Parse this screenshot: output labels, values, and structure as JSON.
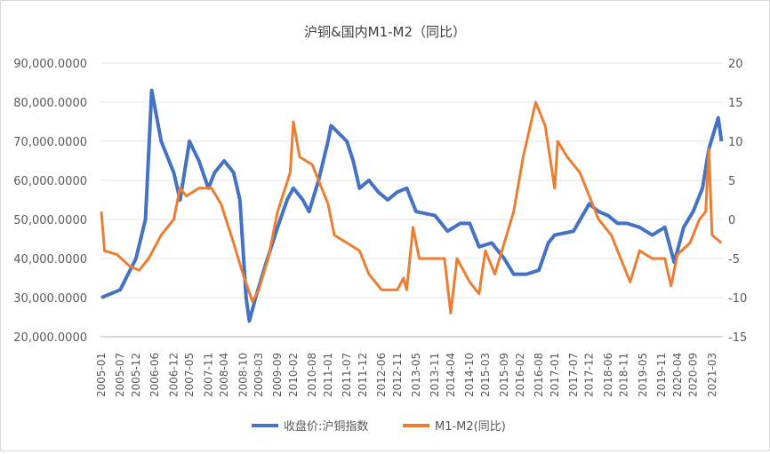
{
  "chart_data": {
    "type": "line",
    "title": "沪铜&国内M1-M2（同比）",
    "y_left": {
      "min": 20000,
      "max": 90000,
      "step": 10000,
      "ticks": [
        "20,000.0000",
        "30,000.0000",
        "40,000.0000",
        "50,000.0000",
        "60,000.0000",
        "70,000.0000",
        "80,000.0000",
        "90,000.0000"
      ]
    },
    "y_right": {
      "min": -15,
      "max": 20,
      "step": 5,
      "ticks": [
        "-15",
        "-10",
        "-5",
        "0",
        "5",
        "10",
        "15",
        "20"
      ]
    },
    "x_ticks": [
      "2005-01",
      "2005-07",
      "2005-12",
      "2006-06",
      "2006-12",
      "2007-05",
      "2007-11",
      "2008-04",
      "2008-10",
      "2009-03",
      "2009-09",
      "2010-02",
      "2010-08",
      "2011-01",
      "2011-07",
      "2011-12",
      "2012-06",
      "2012-11",
      "2013-05",
      "2013-11",
      "2014-04",
      "2014-10",
      "2015-03",
      "2015-09",
      "2016-02",
      "2016-08",
      "2017-01",
      "2017-07",
      "2017-12",
      "2018-06",
      "2018-11",
      "2019-05",
      "2019-11",
      "2020-04",
      "2020-09",
      "2021-03"
    ],
    "grid": true,
    "legend": "bottom",
    "series": [
      {
        "name": "收盘价:沪铜指数",
        "axis": "left",
        "color": "#4472C4",
        "points": [
          [
            "2005-01",
            30000
          ],
          [
            "2005-07",
            32000
          ],
          [
            "2005-12",
            40000
          ],
          [
            "2006-03",
            50000
          ],
          [
            "2006-05",
            83000
          ],
          [
            "2006-08",
            70000
          ],
          [
            "2006-12",
            62000
          ],
          [
            "2007-02",
            55000
          ],
          [
            "2007-05",
            70000
          ],
          [
            "2007-08",
            65000
          ],
          [
            "2007-11",
            58000
          ],
          [
            "2008-01",
            62000
          ],
          [
            "2008-04",
            65000
          ],
          [
            "2008-07",
            62000
          ],
          [
            "2008-09",
            55000
          ],
          [
            "2008-11",
            30000
          ],
          [
            "2008-12",
            24000
          ],
          [
            "2009-02",
            30000
          ],
          [
            "2009-05",
            38000
          ],
          [
            "2009-09",
            48000
          ],
          [
            "2009-12",
            55000
          ],
          [
            "2010-02",
            58000
          ],
          [
            "2010-05",
            55000
          ],
          [
            "2010-07",
            52000
          ],
          [
            "2010-10",
            60000
          ],
          [
            "2011-01",
            70000
          ],
          [
            "2011-02",
            74000
          ],
          [
            "2011-07",
            70000
          ],
          [
            "2011-09",
            65000
          ],
          [
            "2011-11",
            58000
          ],
          [
            "2012-02",
            60000
          ],
          [
            "2012-05",
            57000
          ],
          [
            "2012-08",
            55000
          ],
          [
            "2012-11",
            57000
          ],
          [
            "2013-02",
            58000
          ],
          [
            "2013-05",
            52000
          ],
          [
            "2013-11",
            51000
          ],
          [
            "2014-03",
            47000
          ],
          [
            "2014-07",
            49000
          ],
          [
            "2014-10",
            49000
          ],
          [
            "2015-01",
            43000
          ],
          [
            "2015-05",
            44000
          ],
          [
            "2015-09",
            40000
          ],
          [
            "2015-12",
            36000
          ],
          [
            "2016-04",
            36000
          ],
          [
            "2016-08",
            37000
          ],
          [
            "2016-11",
            44000
          ],
          [
            "2017-01",
            46000
          ],
          [
            "2017-07",
            47000
          ],
          [
            "2017-12",
            54000
          ],
          [
            "2018-03",
            52000
          ],
          [
            "2018-06",
            51000
          ],
          [
            "2018-09",
            49000
          ],
          [
            "2018-12",
            49000
          ],
          [
            "2019-04",
            48000
          ],
          [
            "2019-08",
            46000
          ],
          [
            "2019-12",
            48000
          ],
          [
            "2020-03",
            39000
          ],
          [
            "2020-06",
            48000
          ],
          [
            "2020-09",
            52000
          ],
          [
            "2020-12",
            58000
          ],
          [
            "2021-02",
            68000
          ],
          [
            "2021-05",
            76000
          ],
          [
            "2021-06",
            70000
          ]
        ]
      },
      {
        "name": "M1-M2(同比)",
        "axis": "right",
        "color": "#ED7D31",
        "points": [
          [
            "2005-01",
            1
          ],
          [
            "2005-02",
            -4
          ],
          [
            "2005-06",
            -4.5
          ],
          [
            "2005-10",
            -6
          ],
          [
            "2006-01",
            -6.5
          ],
          [
            "2006-04",
            -5
          ],
          [
            "2006-08",
            -2
          ],
          [
            "2006-12",
            0
          ],
          [
            "2007-02",
            4
          ],
          [
            "2007-04",
            3
          ],
          [
            "2007-08",
            4
          ],
          [
            "2007-12",
            4
          ],
          [
            "2008-03",
            2
          ],
          [
            "2008-07",
            -3
          ],
          [
            "2008-10",
            -7
          ],
          [
            "2009-01",
            -10.5
          ],
          [
            "2009-03",
            -9
          ],
          [
            "2009-06",
            -5
          ],
          [
            "2009-09",
            1
          ],
          [
            "2010-01",
            6
          ],
          [
            "2010-02",
            12.5
          ],
          [
            "2010-04",
            8
          ],
          [
            "2010-08",
            7
          ],
          [
            "2010-10",
            5
          ],
          [
            "2011-01",
            2
          ],
          [
            "2011-03",
            -2
          ],
          [
            "2011-07",
            -3
          ],
          [
            "2011-11",
            -4
          ],
          [
            "2012-02",
            -7
          ],
          [
            "2012-06",
            -9
          ],
          [
            "2012-11",
            -9
          ],
          [
            "2013-01",
            -7.5
          ],
          [
            "2013-02",
            -9
          ],
          [
            "2013-04",
            -1
          ],
          [
            "2013-06",
            -5
          ],
          [
            "2013-11",
            -5
          ],
          [
            "2014-02",
            -5
          ],
          [
            "2014-04",
            -12
          ],
          [
            "2014-06",
            -5
          ],
          [
            "2014-10",
            -8
          ],
          [
            "2015-01",
            -9.5
          ],
          [
            "2015-03",
            -4
          ],
          [
            "2015-06",
            -7
          ],
          [
            "2015-09",
            -3
          ],
          [
            "2015-12",
            1
          ],
          [
            "2016-03",
            8
          ],
          [
            "2016-07",
            15
          ],
          [
            "2016-10",
            12
          ],
          [
            "2017-01",
            4
          ],
          [
            "2017-02",
            10
          ],
          [
            "2017-05",
            8
          ],
          [
            "2017-09",
            6
          ],
          [
            "2017-12",
            3
          ],
          [
            "2018-03",
            0
          ],
          [
            "2018-07",
            -2
          ],
          [
            "2018-11",
            -6
          ],
          [
            "2019-01",
            -8
          ],
          [
            "2019-04",
            -4
          ],
          [
            "2019-08",
            -5
          ],
          [
            "2019-12",
            -5
          ],
          [
            "2020-02",
            -8.5
          ],
          [
            "2020-04",
            -4.5
          ],
          [
            "2020-08",
            -3
          ],
          [
            "2020-11",
            0
          ],
          [
            "2021-01",
            1
          ],
          [
            "2021-02",
            9
          ],
          [
            "2021-03",
            -2
          ],
          [
            "2021-06",
            -3
          ]
        ]
      }
    ]
  }
}
